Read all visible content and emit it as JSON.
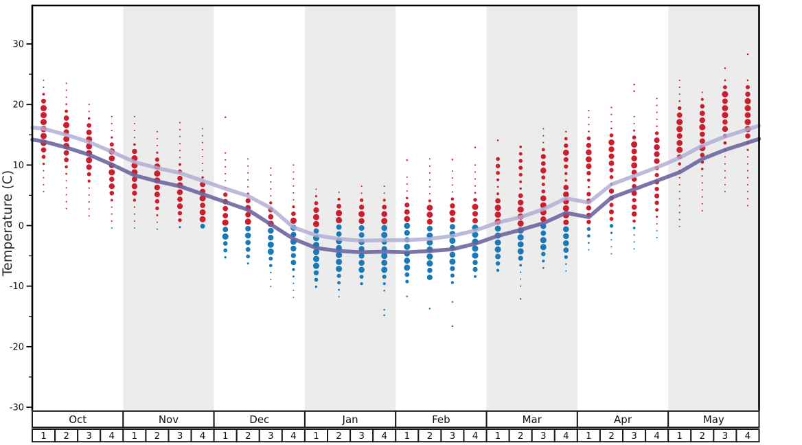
{
  "chart_data": {
    "type": "scatter",
    "title": "",
    "ylabel": "Temperature (C)",
    "xlabel": "",
    "y_major_ticks": [
      30,
      20,
      10,
      0,
      -10,
      -20,
      -30
    ],
    "y_minor_ticks": [
      25,
      15,
      5,
      -5,
      -15,
      -25
    ],
    "ylim": [
      -33,
      36
    ],
    "months": [
      "Oct",
      "Nov",
      "Dec",
      "Jan",
      "Feb",
      "Mar",
      "Apr",
      "May"
    ],
    "weeks_per_month": [
      "1",
      "2",
      "3",
      "4"
    ],
    "shaded_months": [
      "Nov",
      "Jan",
      "Mar",
      "May"
    ],
    "colors": {
      "warm_dot": "#cc1f2e",
      "cold_dot": "#1b79b6",
      "avg_max_line": "#aeacd4",
      "avg_min_line": "#69639e",
      "month_band": "#ececec",
      "axis": "#000000",
      "table_border": "#1a1a1a"
    },
    "dot_sizing": {
      "r_max": 4.55,
      "r_min": 1.05,
      "temp_step": 1.15
    },
    "series": [
      {
        "name": "avg_max_line",
        "values_by_week": [
          16.0,
          15.0,
          13.8,
          12.2,
          10.5,
          9.5,
          8.7,
          7.4,
          6.1,
          4.9,
          2.9,
          -0.3,
          -1.6,
          -2.2,
          -2.5,
          -2.4,
          -2.4,
          -2.2,
          -1.7,
          -0.8,
          0.5,
          1.4,
          2.7,
          4.5,
          3.8,
          6.8,
          8.2,
          9.6,
          11.2,
          13.2,
          14.7,
          15.9
        ],
        "left_edge": 16.2,
        "right_edge": 16.5
      },
      {
        "name": "avg_min_line",
        "values_by_week": [
          13.9,
          12.9,
          11.7,
          10.1,
          8.3,
          7.3,
          6.5,
          5.2,
          3.9,
          2.6,
          0.2,
          -2.2,
          -3.7,
          -4.2,
          -4.4,
          -4.3,
          -4.4,
          -4.2,
          -3.9,
          -3.0,
          -1.7,
          -0.7,
          0.4,
          2.1,
          1.4,
          4.6,
          6.0,
          7.4,
          8.8,
          11.0,
          12.5,
          13.7
        ],
        "left_edge": 14.2,
        "right_edge": 14.3
      }
    ],
    "temperature_columns": [
      {
        "month": "Oct",
        "week": "1",
        "max": 24,
        "min": 5.5,
        "big_ranges": [
          [
            19,
            14.5,
            1
          ]
        ],
        "outliers": []
      },
      {
        "month": "Oct",
        "week": "2",
        "max": 23.5,
        "min": 2.5,
        "big_ranges": [
          [
            17,
            13,
            1
          ]
        ],
        "outliers": []
      },
      {
        "month": "Oct",
        "week": "3",
        "max": 20,
        "min": 1,
        "big_ranges": [
          [
            15,
            11,
            1
          ]
        ],
        "outliers": []
      },
      {
        "month": "Oct",
        "week": "4",
        "max": 18,
        "min": -0.5,
        "big_ranges": [
          [
            12,
            8,
            1
          ]
        ],
        "outliers": []
      },
      {
        "month": "Nov",
        "week": "1",
        "max": 18,
        "min": -0.5,
        "big_ranges": [
          [
            11,
            7.5,
            1
          ]
        ],
        "outliers": []
      },
      {
        "month": "Nov",
        "week": "2",
        "max": 15.5,
        "min": -1,
        "big_ranges": [
          [
            9.5,
            6,
            1
          ]
        ],
        "outliers": []
      },
      {
        "month": "Nov",
        "week": "3",
        "max": 17,
        "min": -0.5,
        "big_ranges": [
          [
            7.5,
            4,
            1
          ]
        ],
        "outliers": []
      },
      {
        "month": "Nov",
        "week": "4",
        "max": 16,
        "min": -1,
        "big_ranges": [
          [
            5.5,
            1.5,
            1
          ]
        ],
        "outliers": []
      },
      {
        "month": "Dec",
        "week": "1",
        "max": 12,
        "min": -6,
        "big_ranges": [
          [
            3.5,
            -1,
            1
          ]
        ],
        "outliers": [
          17.9
        ]
      },
      {
        "month": "Dec",
        "week": "2",
        "max": 11,
        "min": -7,
        "big_ranges": [
          [
            2.5,
            -2,
            1
          ]
        ],
        "outliers": []
      },
      {
        "month": "Dec",
        "week": "3",
        "max": 9.5,
        "min": -10.5,
        "big_ranges": [
          [
            1.5,
            -3,
            1
          ]
        ],
        "outliers": []
      },
      {
        "month": "Dec",
        "week": "4",
        "max": 10,
        "min": -12.5,
        "big_ranges": [
          [
            0.5,
            -4,
            1
          ]
        ],
        "outliers": []
      },
      {
        "month": "Jan",
        "week": "1",
        "max": 6,
        "min": -11,
        "big_ranges": [
          [
            2,
            -6,
            1
          ]
        ],
        "outliers": []
      },
      {
        "month": "Jan",
        "week": "2",
        "max": 5.5,
        "min": -12,
        "big_ranges": [
          [
            2,
            -6,
            1
          ]
        ],
        "outliers": []
      },
      {
        "month": "Jan",
        "week": "3",
        "max": 6.5,
        "min": -10,
        "big_ranges": [
          [
            2,
            -6,
            1
          ]
        ],
        "outliers": []
      },
      {
        "month": "Jan",
        "week": "4",
        "max": 6.5,
        "min": -11,
        "big_ranges": [
          [
            2,
            -6,
            1
          ]
        ],
        "outliers": [
          -13.9,
          -14.8
        ]
      },
      {
        "month": "Feb",
        "week": "1",
        "max": 8,
        "min": -10,
        "big_ranges": [
          [
            2,
            -6,
            1
          ]
        ],
        "outliers": [
          10.8,
          -11.7
        ]
      },
      {
        "month": "Feb",
        "week": "2",
        "max": 11,
        "min": -9,
        "big_ranges": [
          [
            2,
            -6.5,
            1
          ]
        ],
        "outliers": [
          -13.7
        ]
      },
      {
        "month": "Feb",
        "week": "3",
        "max": 9,
        "min": -9.5,
        "big_ranges": [
          [
            2,
            -6,
            1
          ]
        ],
        "outliers": [
          10.9,
          -12.6,
          -16.6
        ]
      },
      {
        "month": "Feb",
        "week": "4",
        "max": 10,
        "min": -9,
        "big_ranges": [
          [
            2.5,
            -5,
            1
          ]
        ],
        "outliers": [
          12.9
        ]
      },
      {
        "month": "Mar",
        "week": "1",
        "max": 11,
        "min": -8.5,
        "big_ranges": [
          [
            3,
            -4,
            1
          ],
          [
            11,
            10,
            0.7
          ]
        ],
        "outliers": [
          14.1
        ]
      },
      {
        "month": "Mar",
        "week": "2",
        "max": 13,
        "min": -10,
        "big_ranges": [
          [
            3.5,
            -3,
            1
          ],
          [
            11,
            10,
            0.7
          ]
        ],
        "outliers": [
          -12.1
        ]
      },
      {
        "month": "Mar",
        "week": "3",
        "max": 16,
        "min": -8,
        "big_ranges": [
          [
            4,
            -2.5,
            1
          ],
          [
            10.5,
            9.5,
            0.85
          ]
        ],
        "outliers": []
      },
      {
        "month": "Mar",
        "week": "4",
        "max": 15.5,
        "min": -8,
        "big_ranges": [
          [
            5,
            -2,
            1
          ],
          [
            12.5,
            11.5,
            0.85
          ]
        ],
        "outliers": []
      },
      {
        "month": "Apr",
        "week": "1",
        "max": 19,
        "min": -4,
        "big_ranges": [
          [
            12.5,
            10.5,
            1
          ],
          [
            4,
            1.5,
            0.85
          ]
        ],
        "outliers": []
      },
      {
        "month": "Apr",
        "week": "2",
        "max": 19.5,
        "min": -5,
        "big_ranges": [
          [
            13,
            11,
            1
          ],
          [
            5,
            2.5,
            0.8
          ]
        ],
        "outliers": []
      },
      {
        "month": "Apr",
        "week": "3",
        "max": 18,
        "min": -4,
        "big_ranges": [
          [
            13,
            11,
            1
          ],
          [
            8.5,
            3,
            0.8
          ]
        ],
        "outliers": [
          22.2,
          23.3
        ]
      },
      {
        "month": "Apr",
        "week": "4",
        "max": 21,
        "min": -3,
        "big_ranges": [
          [
            13.5,
            11.5,
            1
          ],
          [
            8,
            5,
            0.75
          ]
        ],
        "outliers": []
      },
      {
        "month": "May",
        "week": "1",
        "max": 24,
        "min": -1,
        "big_ranges": [
          [
            17.5,
            13.5,
            1
          ]
        ],
        "outliers": []
      },
      {
        "month": "May",
        "week": "2",
        "max": 22,
        "min": 1.5,
        "big_ranges": [
          [
            18.5,
            13.5,
            1
          ]
        ],
        "outliers": []
      },
      {
        "month": "May",
        "week": "3",
        "max": 24,
        "min": 5,
        "big_ranges": [
          [
            21,
            17,
            1
          ]
        ],
        "outliers": [
          26
        ]
      },
      {
        "month": "May",
        "week": "4",
        "max": 24,
        "min": 2.5,
        "big_ranges": [
          [
            21,
            16.5,
            1
          ]
        ],
        "outliers": [
          28.3
        ]
      }
    ]
  }
}
